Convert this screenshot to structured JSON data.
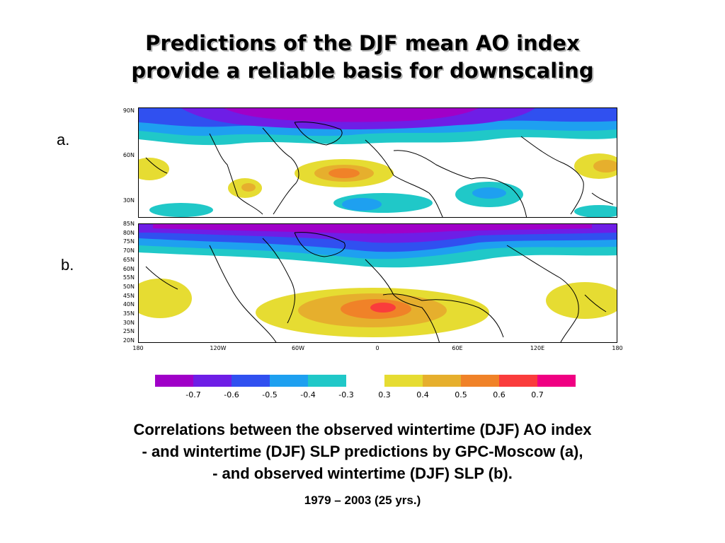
{
  "title": {
    "line1": "Predictions of the DJF mean AO index",
    "line2": "provide a reliable basis for downscaling"
  },
  "panel_a": {
    "label": "a.",
    "lat_ticks": [
      "90N",
      "60N",
      "30N"
    ]
  },
  "panel_b": {
    "label": "b.",
    "lat_ticks": [
      "85N",
      "80N",
      "75N",
      "70N",
      "65N",
      "60N",
      "55N",
      "50N",
      "45N",
      "40N",
      "35N",
      "30N",
      "25N",
      "20N"
    ],
    "lon_ticks": [
      "180",
      "120W",
      "60W",
      "0",
      "60E",
      "120E",
      "180"
    ]
  },
  "colorbar": {
    "negative": [
      {
        "color": "#a000c8"
      },
      {
        "color": "#6e1ee6"
      },
      {
        "color": "#3050f0"
      },
      {
        "color": "#1ea0f0"
      },
      {
        "color": "#20c8c8"
      }
    ],
    "positive": [
      {
        "color": "#e6dc32"
      },
      {
        "color": "#e6af2d"
      },
      {
        "color": "#f08228"
      },
      {
        "color": "#fa3c3c"
      },
      {
        "color": "#f00082"
      }
    ],
    "labels": [
      "-0.7",
      "-0.6",
      "-0.5",
      "-0.4",
      "-0.3",
      "0.3",
      "0.4",
      "0.5",
      "0.6",
      "0.7"
    ]
  },
  "caption": {
    "line1": "Correlations between the observed wintertime (DJF) AO index",
    "line2": "- and wintertime (DJF) SLP predictions by GPC-Moscow (a),",
    "line3": "- and observed wintertime (DJF) SLP (b).",
    "years": "1979 – 2003 (25 yrs.)"
  }
}
